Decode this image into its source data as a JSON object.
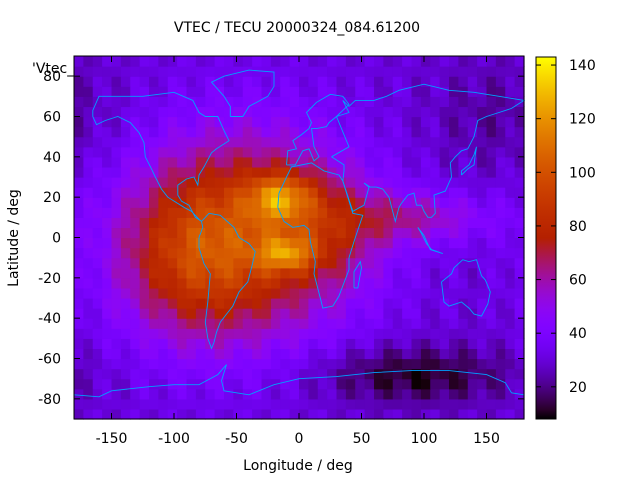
{
  "chart_data": {
    "type": "heatmap",
    "title": "VTEC / TECU 20000324_084.61200",
    "xlabel": "Longitude / deg",
    "ylabel": "Latitude / deg",
    "key_label": "'Vtec_",
    "xlim": [
      -180,
      180
    ],
    "ylim": [
      -90,
      90
    ],
    "x_ticks": [
      -150,
      -100,
      -50,
      0,
      50,
      100,
      150
    ],
    "y_ticks": [
      -80,
      -60,
      -40,
      -20,
      0,
      20,
      40,
      60,
      80
    ],
    "colorbar": {
      "range": [
        8,
        143
      ],
      "ticks": [
        20,
        40,
        60,
        80,
        100,
        120,
        140
      ],
      "palette": "gnuplot-rgbformulae-7-5-15"
    },
    "field_features": [
      {
        "name": "equatorial anomaly crest north",
        "lon": -15,
        "lat": 20,
        "vtec": 140
      },
      {
        "name": "equatorial anomaly crest south",
        "lon": -10,
        "lat": -8,
        "vtec": 132
      },
      {
        "name": "dayside equatorial belt",
        "lon": -20,
        "lat": 10,
        "vtec": 95
      },
      {
        "name": "eastern extension",
        "lon": 95,
        "lat": 10,
        "vtec": 92
      },
      {
        "name": "southern high-latitude minimum",
        "lon": 90,
        "lat": -68,
        "vtec": 10
      }
    ]
  }
}
